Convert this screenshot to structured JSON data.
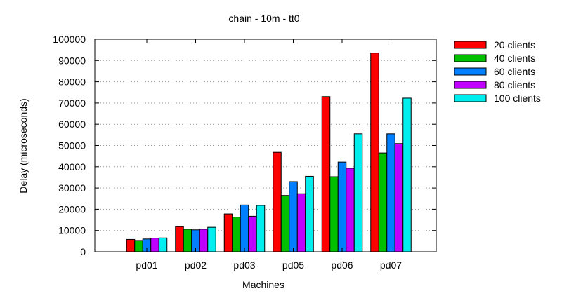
{
  "chart_data": {
    "type": "bar",
    "title": "chain - 10m - tt0",
    "xlabel": "Machines",
    "ylabel": "Delay (microseconds)",
    "ylim": [
      0,
      100000
    ],
    "yticks": [
      0,
      10000,
      20000,
      30000,
      40000,
      50000,
      60000,
      70000,
      80000,
      90000,
      100000
    ],
    "grid": "horizontal dotted",
    "legend_position": "right",
    "categories": [
      "pd01",
      "pd02",
      "pd03",
      "pd05",
      "pd06",
      "pd07"
    ],
    "series": [
      {
        "name": "20 clients",
        "color": "#ff0000",
        "values": [
          5800,
          11800,
          17800,
          46800,
          73000,
          93500
        ]
      },
      {
        "name": "40 clients",
        "color": "#00c000",
        "values": [
          5300,
          10600,
          16300,
          26500,
          35300,
          46500
        ]
      },
      {
        "name": "60 clients",
        "color": "#0080ff",
        "values": [
          6000,
          10300,
          22000,
          33000,
          42200,
          55500
        ]
      },
      {
        "name": "80 clients",
        "color": "#c000ff",
        "values": [
          6400,
          10600,
          16700,
          27300,
          39300,
          50900
        ]
      },
      {
        "name": "100 clients",
        "color": "#00eeee",
        "values": [
          6500,
          11500,
          21800,
          35500,
          55500,
          72300
        ]
      }
    ]
  }
}
